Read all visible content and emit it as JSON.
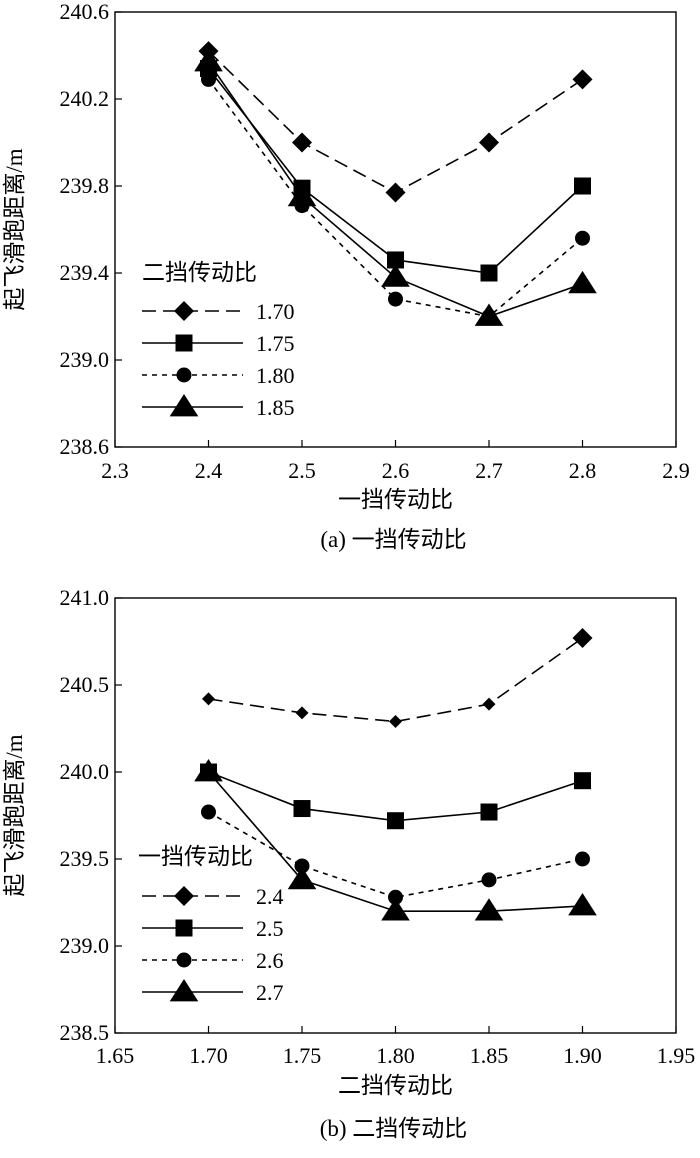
{
  "chart_data": [
    {
      "type": "line",
      "caption": "(a) 一挡传动比",
      "xlabel": "一挡传动比",
      "ylabel": "起飞滑跑距离/m",
      "xlim": [
        2.3,
        2.9
      ],
      "ylim": [
        238.6,
        240.6
      ],
      "xticks": [
        "2.3",
        "2.4",
        "2.5",
        "2.6",
        "2.7",
        "2.8",
        "2.9"
      ],
      "yticks": [
        "238.6",
        "239.0",
        "239.4",
        "239.8",
        "240.2",
        "240.6"
      ],
      "x": [
        2.4,
        2.5,
        2.6,
        2.7,
        2.8
      ],
      "legend_title": "二挡传动比",
      "legend_position": "left",
      "grid": false,
      "series": [
        {
          "name": "1.70",
          "marker": "diamond",
          "dash": "long-dash",
          "values": [
            240.42,
            240.0,
            239.77,
            240.0,
            240.29
          ]
        },
        {
          "name": "1.75",
          "marker": "square",
          "dash": "solid",
          "values": [
            240.34,
            239.79,
            239.46,
            239.4,
            239.8
          ]
        },
        {
          "name": "1.80",
          "marker": "circle",
          "dash": "short-dash",
          "values": [
            240.29,
            239.71,
            239.28,
            239.2,
            239.56
          ]
        },
        {
          "name": "1.85",
          "marker": "triangle",
          "dash": "solid",
          "values": [
            240.37,
            239.75,
            239.38,
            239.2,
            239.35
          ]
        }
      ]
    },
    {
      "type": "line",
      "caption": "(b) 二挡传动比",
      "xlabel": "二挡传动比",
      "ylabel": "起飞滑跑距离/m",
      "xlim": [
        1.65,
        1.95
      ],
      "ylim": [
        238.5,
        241.0
      ],
      "xticks": [
        "1.65",
        "1.70",
        "1.75",
        "1.80",
        "1.85",
        "1.90",
        "1.95"
      ],
      "yticks": [
        "238.5",
        "239.0",
        "239.5",
        "240.0",
        "240.5",
        "241.0"
      ],
      "x": [
        1.7,
        1.75,
        1.8,
        1.85,
        1.9
      ],
      "legend_title": "一挡传动比",
      "legend_position": "left",
      "grid": false,
      "series": [
        {
          "name": "2.4",
          "marker": "diamond",
          "dash": "long-dash",
          "values": [
            240.42,
            240.34,
            240.29,
            240.39,
            240.77
          ]
        },
        {
          "name": "2.5",
          "marker": "square",
          "dash": "solid",
          "values": [
            240.0,
            239.79,
            239.72,
            239.77,
            239.95
          ]
        },
        {
          "name": "2.6",
          "marker": "circle",
          "dash": "short-dash",
          "values": [
            239.77,
            239.46,
            239.28,
            239.38,
            239.5
          ]
        },
        {
          "name": "2.7",
          "marker": "triangle",
          "dash": "solid",
          "values": [
            240.0,
            239.38,
            239.2,
            239.2,
            239.23
          ]
        }
      ]
    }
  ]
}
